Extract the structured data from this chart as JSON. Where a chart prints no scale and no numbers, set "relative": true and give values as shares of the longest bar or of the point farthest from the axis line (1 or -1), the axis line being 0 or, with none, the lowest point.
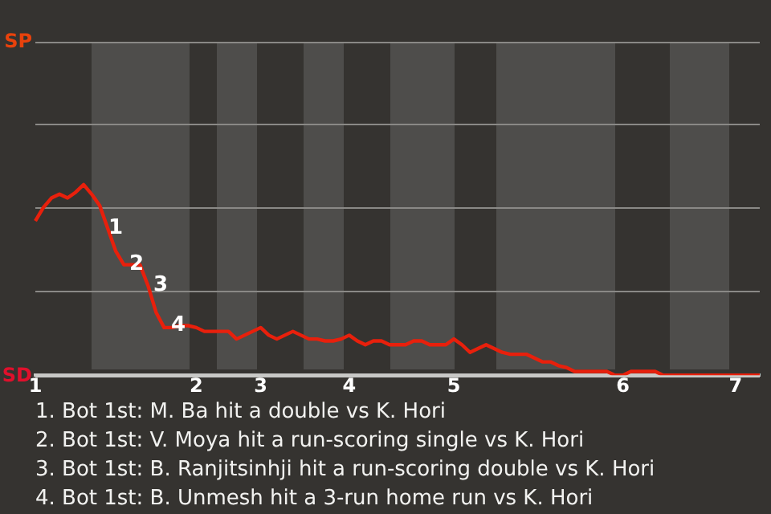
{
  "chart_data": {
    "type": "line",
    "relative": true,
    "categories": [
      "1",
      null,
      null,
      null,
      null,
      null,
      null,
      null,
      null,
      null,
      null,
      null,
      null,
      null,
      null,
      null,
      null,
      null,
      null,
      null,
      "2",
      null,
      null,
      null,
      null,
      null,
      null,
      null,
      "3",
      null,
      null,
      null,
      null,
      null,
      null,
      null,
      null,
      null,
      null,
      "4",
      null,
      null,
      null,
      null,
      null,
      null,
      null,
      null,
      null,
      null,
      null,
      null,
      "5",
      null,
      null,
      null,
      null,
      null,
      null,
      null,
      null,
      null,
      null,
      null,
      null,
      null,
      null,
      null,
      null,
      null,
      null,
      null,
      null,
      "6",
      null,
      null,
      null,
      null,
      null,
      null,
      null,
      null,
      null,
      null,
      null,
      null,
      null,
      "7",
      null,
      null,
      null
    ],
    "series": [
      {
        "color": "#e8200c",
        "values": [
          0.81,
          0.88,
          0.93,
          0.95,
          0.93,
          0.96,
          1,
          0.95,
          0.89,
          0.77,
          0.65,
          0.58,
          0.58,
          0.58,
          0.47,
          0.33,
          0.25,
          0.25,
          0.26,
          0.26,
          0.25,
          0.23,
          0.23,
          0.23,
          0.23,
          0.19,
          0.21,
          0.23,
          0.25,
          0.21,
          0.19,
          0.21,
          0.23,
          0.21,
          0.19,
          0.19,
          0.18,
          0.18,
          0.19,
          0.21,
          0.18,
          0.16,
          0.18,
          0.18,
          0.16,
          0.16,
          0.16,
          0.18,
          0.18,
          0.16,
          0.16,
          0.16,
          0.19,
          0.16,
          0.12,
          0.14,
          0.16,
          0.14,
          0.12,
          0.11,
          0.11,
          0.11,
          0.09,
          0.07,
          0.07,
          0.05,
          0.04,
          0.02,
          0.02,
          0.02,
          0.02,
          0.02,
          0,
          0,
          0.02,
          0.02,
          0.02,
          0.02,
          0,
          0,
          0,
          0,
          0,
          0,
          0,
          0,
          0,
          0,
          0,
          0,
          0
        ]
      }
    ],
    "ref_lines": [
      {
        "axis": "y",
        "value": 0,
        "label": "SD",
        "color": "#c8c8c6"
      },
      {
        "axis": "y",
        "value": 0.44,
        "color": "#8a8986"
      },
      {
        "axis": "y",
        "value": 0.88,
        "color": "#8a8986"
      },
      {
        "axis": "y",
        "value": 1.32,
        "color": "#8a8986"
      },
      {
        "axis": "y",
        "value": 1.75,
        "label": "SP",
        "color": "#8a8986"
      }
    ],
    "marker": "none",
    "annotations": [
      {
        "text": "1",
        "y": 0.77
      },
      {
        "text": "2",
        "y": 0.58
      },
      {
        "text": "3",
        "y": 0.47
      },
      {
        "text": "4",
        "y": 0.26
      },
      "1. Bot 1st: M. Ba hit a double vs K. Hori",
      "2. Bot 1st: V. Moya hit a run-scoring single vs K. Hori",
      "3. Bot 1st: B. Ranjitsinhji hit a run-scoring double vs K. Hori",
      "4. Bot 1st: B. Unmesh hit a 3-run home run vs K. Hori"
    ],
    "legend": false
  }
}
